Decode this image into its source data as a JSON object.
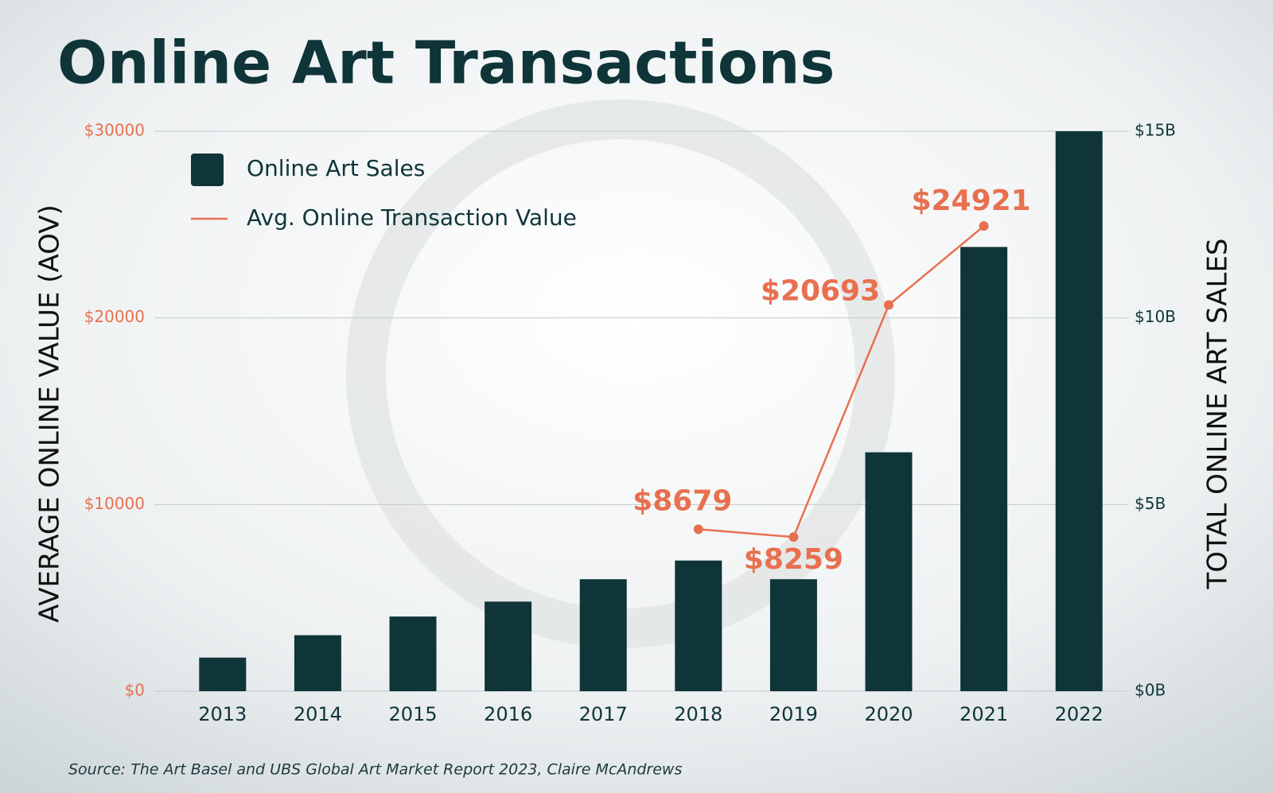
{
  "chart_data": {
    "type": "bar_line",
    "title": "Online Art Transactions",
    "y_label": "AVERAGE ONLINE VALUE (AOV)",
    "y2_label": "TOTAL ONLINE ART SALES",
    "source": "Source: The Art Basel and UBS Global Art Market Report 2023, Claire McAndrews",
    "categories": [
      "2013",
      "2014",
      "2015",
      "2016",
      "2017",
      "2018",
      "2019",
      "2020",
      "2021",
      "2022"
    ],
    "series": [
      {
        "name": "Online Art Sales",
        "type": "bar",
        "axis": "y2",
        "color": "#0f3539",
        "values": [
          0.9,
          1.5,
          2.0,
          2.4,
          3.0,
          3.5,
          3.0,
          6.4,
          11.9,
          15.0
        ]
      },
      {
        "name": "Avg. Online Transaction Value",
        "type": "line",
        "axis": "y",
        "color": "#e8704f",
        "values": [
          null,
          null,
          null,
          null,
          null,
          8679,
          8259,
          20693,
          24921,
          null
        ],
        "value_labels": [
          null,
          null,
          null,
          null,
          null,
          "$8679",
          "$8259",
          "$20693",
          "$24921",
          null
        ]
      }
    ],
    "ylim": [
      0,
      30000
    ],
    "yticks": [
      {
        "value": 0,
        "label": "$0"
      },
      {
        "value": 10000,
        "label": "$10000"
      },
      {
        "value": 20000,
        "label": "$20000"
      },
      {
        "value": 30000,
        "label": "$30000"
      }
    ],
    "y2lim": [
      0,
      15
    ],
    "y2ticks": [
      {
        "value": 0,
        "label": "$0B"
      },
      {
        "value": 5,
        "label": "$5B"
      },
      {
        "value": 10,
        "label": "$10B"
      },
      {
        "value": 15,
        "label": "$15B"
      }
    ],
    "grid": true,
    "legend": "upper left"
  }
}
